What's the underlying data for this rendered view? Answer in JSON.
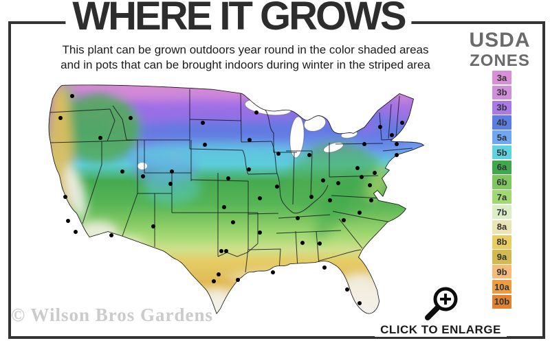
{
  "header": {
    "title": "WHERE IT GROWS",
    "subtitle_line1": "This plant can be grown outdoors year round in the color shaded areas",
    "subtitle_line2": "and in pots that can be brought indoors during winter in the striped area"
  },
  "legend": {
    "title_line1": "USDA",
    "title_line2": "ZONES",
    "zones": [
      {
        "label": "3a",
        "color": "#d98fd5"
      },
      {
        "label": "3b",
        "color": "#cf8fd9"
      },
      {
        "label": "3b",
        "color": "#a97ae6"
      },
      {
        "label": "4b",
        "color": "#5c7de2"
      },
      {
        "label": "5a",
        "color": "#6fa7f0"
      },
      {
        "label": "5b",
        "color": "#5fd3de"
      },
      {
        "label": "6a",
        "color": "#3fa84d"
      },
      {
        "label": "6b",
        "color": "#7fc75f"
      },
      {
        "label": "7a",
        "color": "#a0d871"
      },
      {
        "label": "7b",
        "color": "#d9eec4"
      },
      {
        "label": "8a",
        "color": "#eae5b3"
      },
      {
        "label": "8b",
        "color": "#eacd61"
      },
      {
        "label": "9a",
        "color": "#d4b94e"
      },
      {
        "label": "9b",
        "color": "#f3bb7c"
      },
      {
        "label": "10a",
        "color": "#ec9c41"
      },
      {
        "label": "10b",
        "color": "#e18232"
      }
    ]
  },
  "footer": {
    "watermark": "© Wilson Bros Gardens",
    "enlarge_label": "CLICK TO ENLARGE"
  },
  "frame_color": "#333333"
}
